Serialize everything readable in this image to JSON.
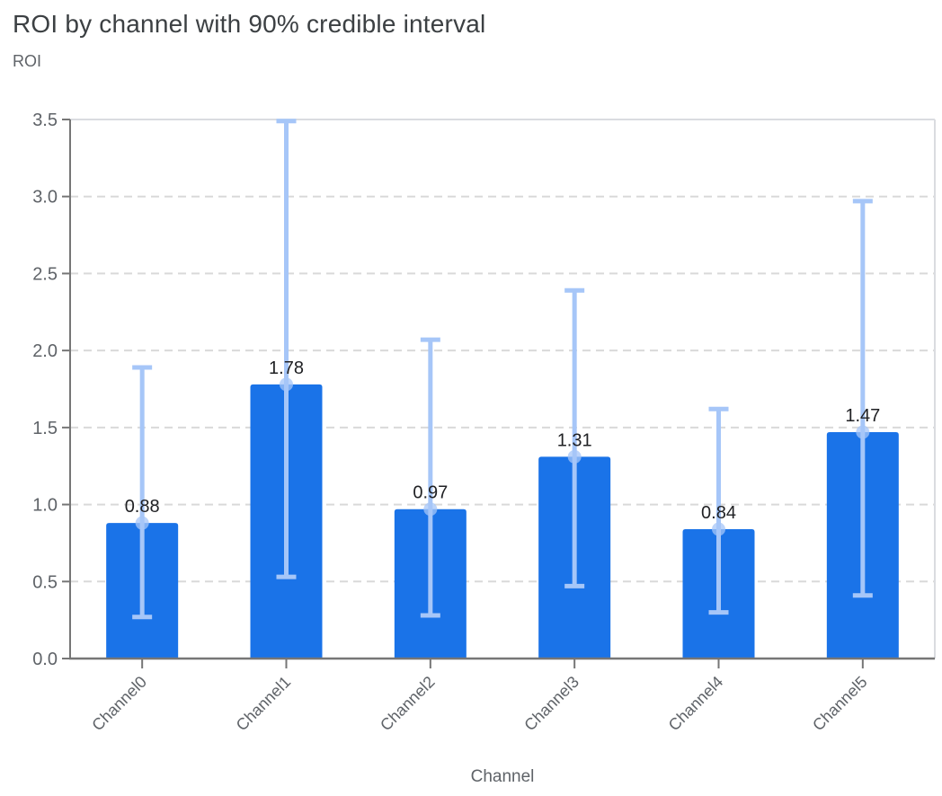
{
  "title": "ROI by channel with 90% credible interval",
  "y_axis_title": "ROI",
  "x_axis_title": "Channel",
  "colors": {
    "bar": "#1a73e8",
    "error_bar": "#a6c6f8",
    "marker": "#a6c6f8",
    "title_text": "#3c4043",
    "axis_text": "#5f6368",
    "value_label_text": "#202124",
    "gridline": "#d9d9d9",
    "plot_border": "#dadce0",
    "axis_line": "#767676"
  },
  "chart_data": {
    "type": "bar",
    "title": "ROI by channel with 90% credible interval",
    "xlabel": "Channel",
    "ylabel": "ROI",
    "categories": [
      "Channel0",
      "Channel1",
      "Channel2",
      "Channel3",
      "Channel4",
      "Channel5"
    ],
    "values": [
      0.88,
      1.78,
      0.97,
      1.31,
      0.84,
      1.47
    ],
    "bar_labels": [
      "0.88",
      "1.78",
      "0.97",
      "1.31",
      "0.84",
      "1.47"
    ],
    "ci_low": [
      0.27,
      0.53,
      0.28,
      0.47,
      0.3,
      0.41
    ],
    "ci_high": [
      1.89,
      3.49,
      2.07,
      2.39,
      1.62,
      2.97
    ],
    "ci_level": "90%",
    "ylim": [
      0,
      3.5
    ],
    "ytick_labels": [
      "0.0",
      "0.5",
      "1.0",
      "1.5",
      "2.0",
      "2.5",
      "3.0",
      "3.5"
    ],
    "grid": "horizontal-dashed",
    "legend": "none"
  }
}
